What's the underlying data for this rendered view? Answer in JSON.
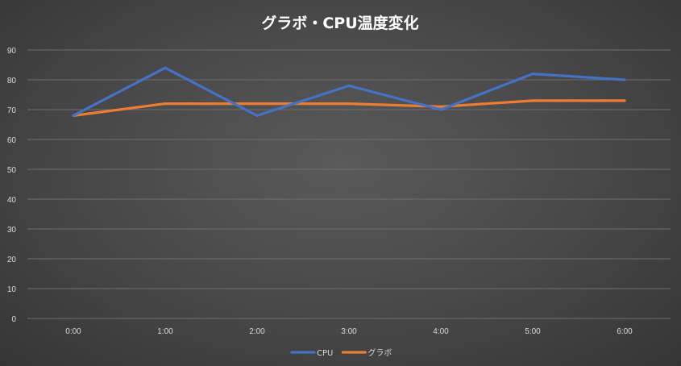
{
  "chart_data": {
    "type": "line",
    "title": "グラボ・CPU温度変化",
    "xlabel": "",
    "ylabel": "",
    "categories": [
      "0:00",
      "1:00",
      "2:00",
      "3:00",
      "4:00",
      "5:00",
      "6:00"
    ],
    "ylim": [
      0,
      90
    ],
    "yticks": [
      0,
      10,
      20,
      30,
      40,
      50,
      60,
      70,
      80,
      90
    ],
    "grid": true,
    "legend_position": "bottom",
    "series": [
      {
        "name": "CPU",
        "color": "#4472C4",
        "values": [
          68,
          84,
          68,
          78,
          70,
          82,
          80
        ]
      },
      {
        "name": "グラボ",
        "color": "#ED7D31",
        "values": [
          68,
          72,
          72,
          72,
          71,
          73,
          73
        ]
      }
    ]
  }
}
